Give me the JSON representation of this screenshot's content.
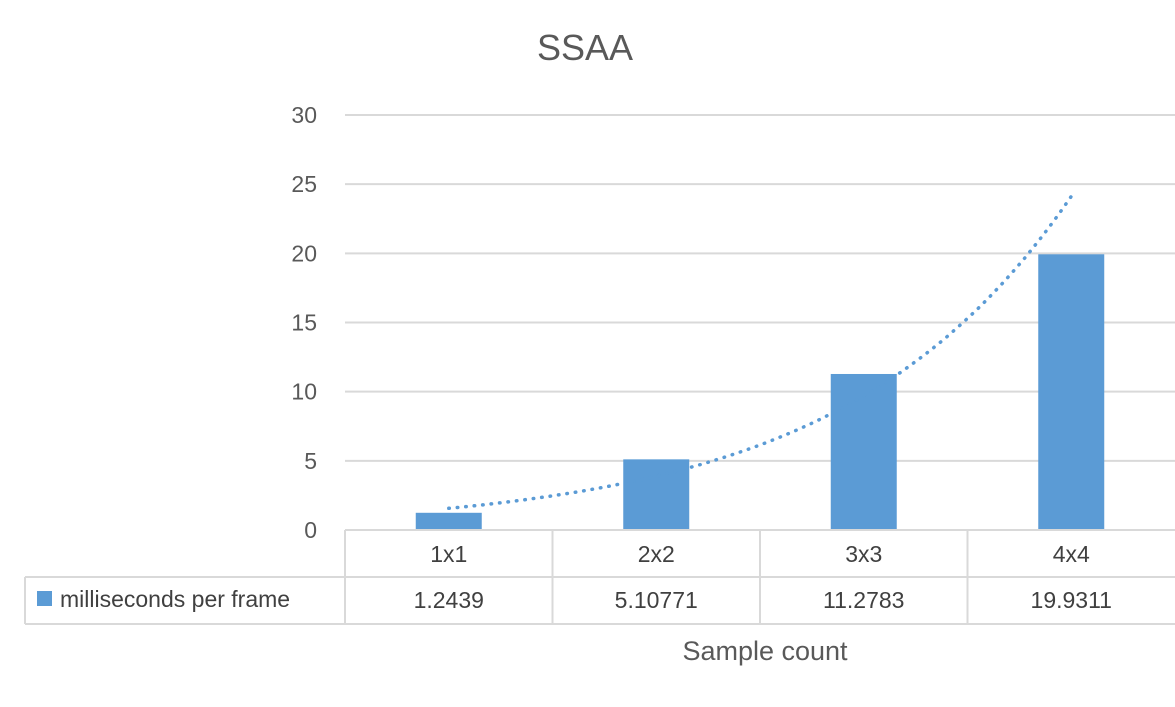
{
  "chart_data": {
    "type": "bar",
    "title": "SSAA",
    "xlabel": "Sample count",
    "ylabel": "",
    "categories": [
      "1x1",
      "2x2",
      "3x3",
      "4x4"
    ],
    "ylim": [
      0,
      30
    ],
    "yticks": [
      0,
      5,
      10,
      15,
      20,
      25,
      30
    ],
    "grid": true,
    "legend": "data-table-left",
    "series": [
      {
        "name": "milliseconds per frame",
        "values": [
          1.2439,
          5.10771,
          11.2783,
          19.9311
        ],
        "value_labels": [
          "1.2439",
          "5.10771",
          "11.2783",
          "19.9311"
        ],
        "color": "#5B9BD5"
      }
    ],
    "trendline": {
      "type": "exponential",
      "style": "dotted",
      "color": "#5B9BD5"
    }
  }
}
